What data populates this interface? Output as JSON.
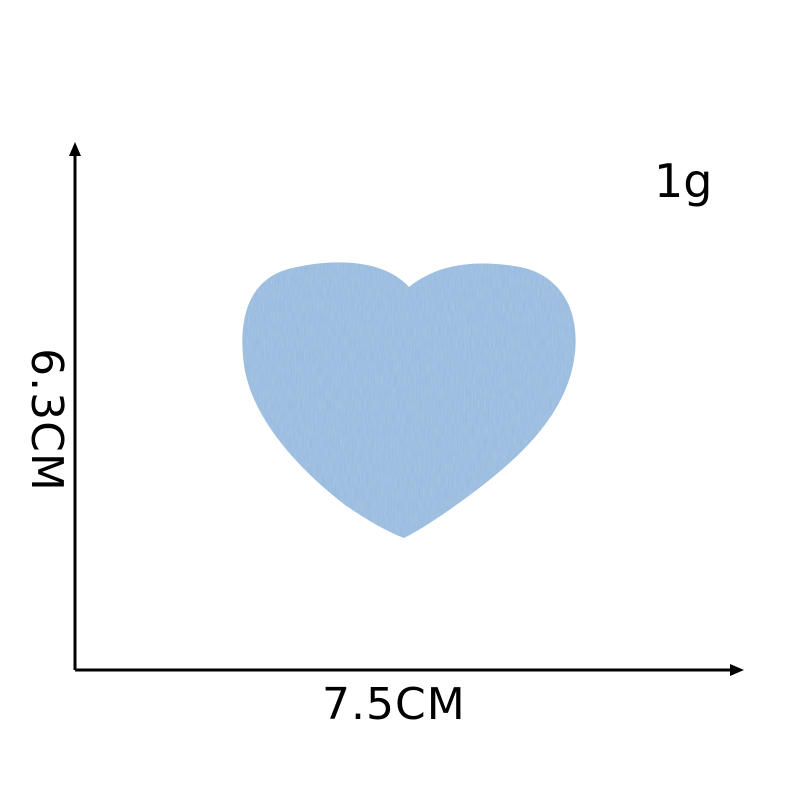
{
  "product": {
    "name_icon": "denim-heart-icon",
    "fill_color": "#93b7dc",
    "texture_colors": [
      "#aac7e6",
      "#7fa6cf",
      "#b9d2ea"
    ]
  },
  "labels": {
    "weight": "1g",
    "width": "7.5CM",
    "height": "6.3CM"
  },
  "axes": {
    "color": "#000000"
  }
}
